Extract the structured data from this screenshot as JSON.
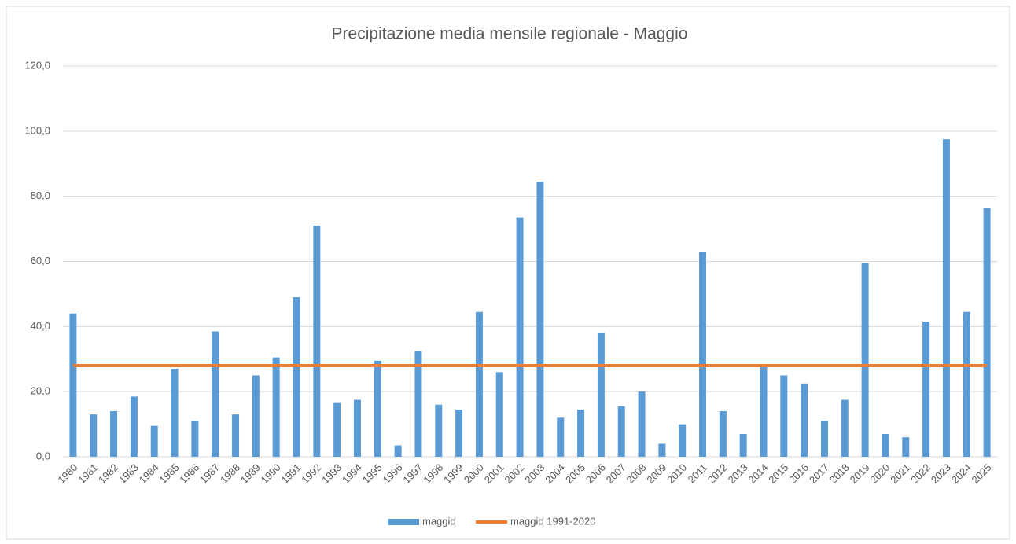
{
  "chart_data": {
    "type": "bar",
    "title": "Precipitazione media mensile regionale - Maggio",
    "categories": [
      "1980",
      "1981",
      "1982",
      "1983",
      "1984",
      "1985",
      "1986",
      "1987",
      "1988",
      "1989",
      "1990",
      "1991",
      "1992",
      "1993",
      "1994",
      "1995",
      "1996",
      "1997",
      "1998",
      "1999",
      "2000",
      "2001",
      "2002",
      "2003",
      "2004",
      "2005",
      "2006",
      "2007",
      "2008",
      "2009",
      "2010",
      "2011",
      "2012",
      "2013",
      "2014",
      "2015",
      "2016",
      "2017",
      "2018",
      "2019",
      "2020",
      "2021",
      "2022",
      "2023",
      "2024",
      "2025"
    ],
    "series": [
      {
        "name": "maggio",
        "color": "#5b9bd5",
        "type": "bar",
        "values": [
          44.0,
          13.0,
          14.0,
          18.5,
          9.5,
          27.0,
          11.0,
          38.5,
          13.0,
          25.0,
          30.5,
          49.0,
          71.0,
          16.5,
          17.5,
          29.5,
          3.5,
          32.5,
          16.0,
          14.5,
          44.5,
          26.0,
          73.5,
          84.5,
          12.0,
          14.5,
          38.0,
          15.5,
          20.0,
          4.0,
          10.0,
          63.0,
          14.0,
          7.0,
          28.0,
          25.0,
          22.5,
          11.0,
          17.5,
          59.5,
          7.0,
          6.0,
          41.5,
          97.5,
          44.5,
          76.5
        ]
      },
      {
        "name": "maggio 1991-2020",
        "color": "#ed7d31",
        "type": "line",
        "values": [
          28.0,
          28.0,
          28.0,
          28.0,
          28.0,
          28.0,
          28.0,
          28.0,
          28.0,
          28.0,
          28.0,
          28.0,
          28.0,
          28.0,
          28.0,
          28.0,
          28.0,
          28.0,
          28.0,
          28.0,
          28.0,
          28.0,
          28.0,
          28.0,
          28.0,
          28.0,
          28.0,
          28.0,
          28.0,
          28.0,
          28.0,
          28.0,
          28.0,
          28.0,
          28.0,
          28.0,
          28.0,
          28.0,
          28.0,
          28.0,
          28.0,
          28.0,
          28.0,
          28.0,
          28.0,
          28.0
        ]
      }
    ],
    "ylim": [
      0,
      120
    ],
    "yticks": [
      {
        "value": 0,
        "label": "0,0"
      },
      {
        "value": 20,
        "label": "20,0"
      },
      {
        "value": 40,
        "label": "40,0"
      },
      {
        "value": 60,
        "label": "60,0"
      },
      {
        "value": 80,
        "label": "80,0"
      },
      {
        "value": 100,
        "label": "100,0"
      },
      {
        "value": 120,
        "label": "120,0"
      }
    ],
    "grid": true,
    "legend": "bottom"
  }
}
